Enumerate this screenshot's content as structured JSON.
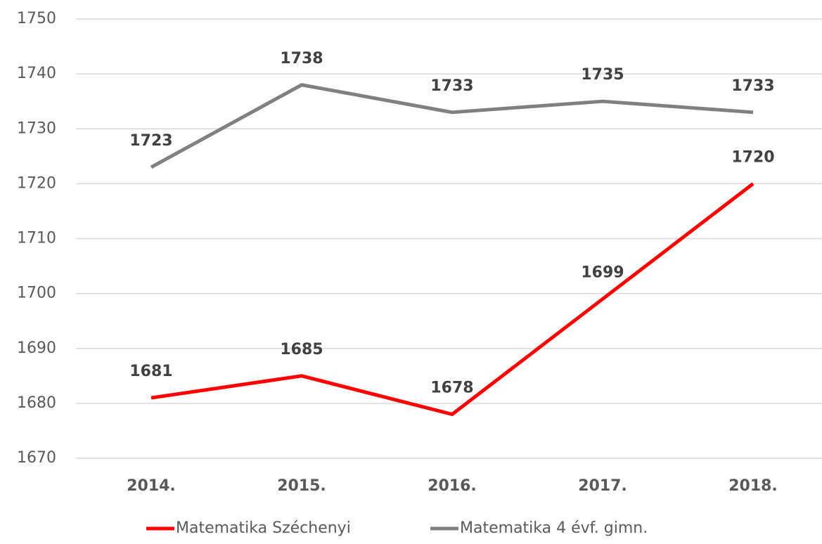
{
  "chart_data": {
    "type": "line",
    "categories": [
      "2014.",
      "2015.",
      "2016.",
      "2017.",
      "2018."
    ],
    "series": [
      {
        "name": "Matematika Széchenyi",
        "color": "#ff0000",
        "values": [
          1681,
          1685,
          1678,
          1699,
          1720
        ]
      },
      {
        "name": "Matematika 4 évf. gimn.",
        "color": "#808080",
        "values": [
          1723,
          1738,
          1733,
          1735,
          1733
        ]
      }
    ],
    "ylim": [
      1670,
      1750
    ],
    "yticks": [
      1670,
      1680,
      1690,
      1700,
      1710,
      1720,
      1730,
      1740,
      1750
    ],
    "grid": true,
    "legend": "bottom"
  }
}
